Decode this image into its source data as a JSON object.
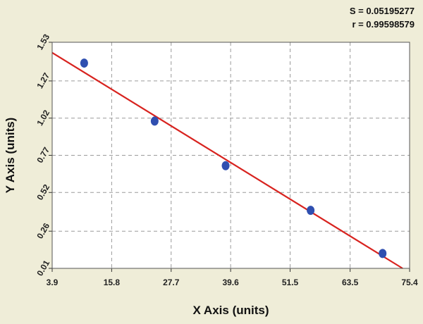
{
  "stats": {
    "s_text": "S = 0.05195277",
    "r_text": "r = 0.99598579"
  },
  "chart_data": {
    "type": "scatter",
    "xlabel": "X Axis (units)",
    "ylabel": "Y Axis (units)",
    "xlim": [
      3.9,
      75.4
    ],
    "ylim": [
      0.01,
      1.53
    ],
    "x_ticks": [
      3.9,
      15.8,
      27.7,
      39.6,
      51.5,
      63.5,
      75.4
    ],
    "x_tick_labels": [
      "3.9",
      "15.8",
      "27.7",
      "39.6",
      "51.5",
      "63.5",
      "75.4"
    ],
    "y_ticks": [
      0.01,
      0.26,
      0.52,
      0.77,
      1.02,
      1.27,
      1.53
    ],
    "y_tick_labels": [
      "0.01",
      "0.26",
      "0.52",
      "0.77",
      "1.02",
      "1.27",
      "1.53"
    ],
    "grid": true,
    "points": [
      {
        "x": 10.3,
        "y": 1.39
      },
      {
        "x": 24.4,
        "y": 1.0
      },
      {
        "x": 38.6,
        "y": 0.7
      },
      {
        "x": 55.6,
        "y": 0.4
      },
      {
        "x": 70.0,
        "y": 0.11
      }
    ],
    "fit_line": {
      "x": [
        3.9,
        75.4
      ],
      "y": [
        1.46,
        0.01
      ]
    },
    "colors": {
      "points": "#2f4fb0",
      "fit_line": "#d8231f",
      "grid": "#9a9a9a",
      "plot_bg": "#ffffff"
    }
  }
}
